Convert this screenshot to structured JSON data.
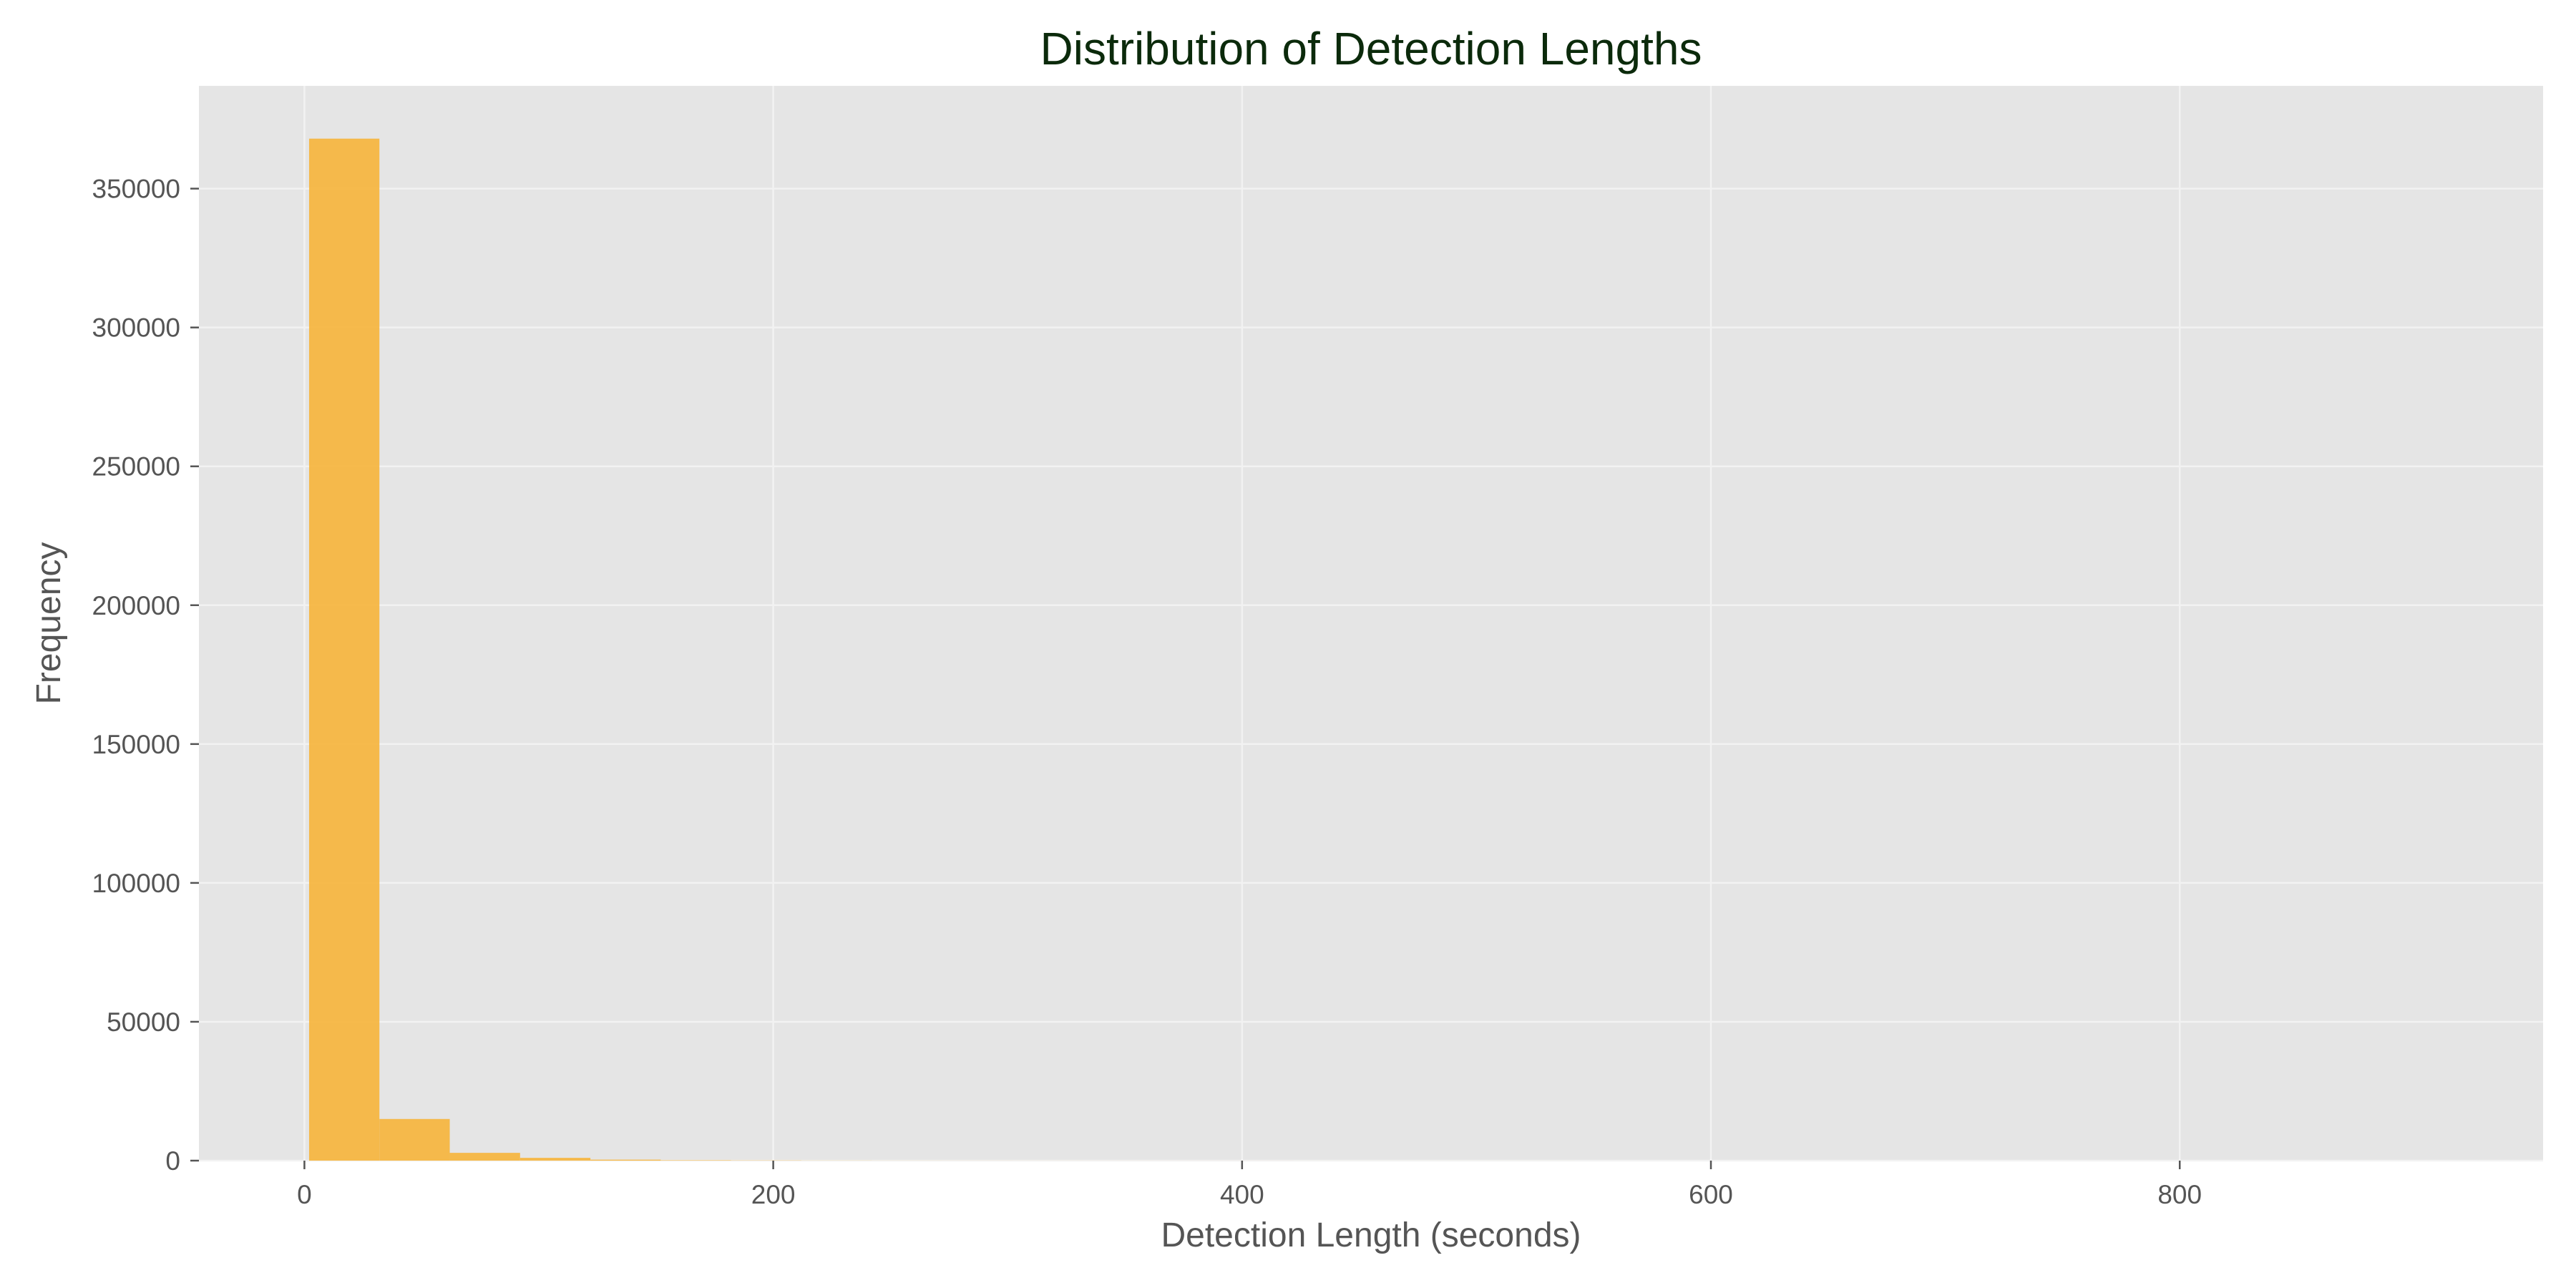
{
  "chart_data": {
    "type": "bar",
    "title": "Distribution of Detection Lengths",
    "xlabel": "Detection Length (seconds)",
    "ylabel": "Frequency",
    "xlim": [
      -45,
      955
    ],
    "ylim": [
      0,
      387000
    ],
    "x_ticks": [
      0,
      200,
      400,
      600,
      800
    ],
    "y_ticks": [
      0,
      50000,
      100000,
      150000,
      200000,
      250000,
      300000,
      350000
    ],
    "bin_edges": [
      2,
      32,
      62,
      92,
      122,
      152,
      182,
      212,
      242,
      272,
      302,
      332,
      362,
      392,
      422,
      452,
      482,
      512,
      542,
      572,
      602,
      632,
      662,
      692,
      722,
      752,
      782,
      812,
      842,
      872,
      902
    ],
    "values": [
      368000,
      15000,
      2800,
      1000,
      350,
      150,
      80,
      40,
      20,
      15,
      10,
      8,
      5,
      5,
      3,
      3,
      2,
      2,
      1,
      1,
      1,
      1,
      1,
      1,
      1,
      1,
      1,
      1,
      1,
      1
    ],
    "grid": true,
    "colors": {
      "bar": "#f5b642",
      "plot_background": "#e5e5e5",
      "grid": "#f2f2f2",
      "title": "#0b2a0b",
      "text": "#555555"
    }
  }
}
